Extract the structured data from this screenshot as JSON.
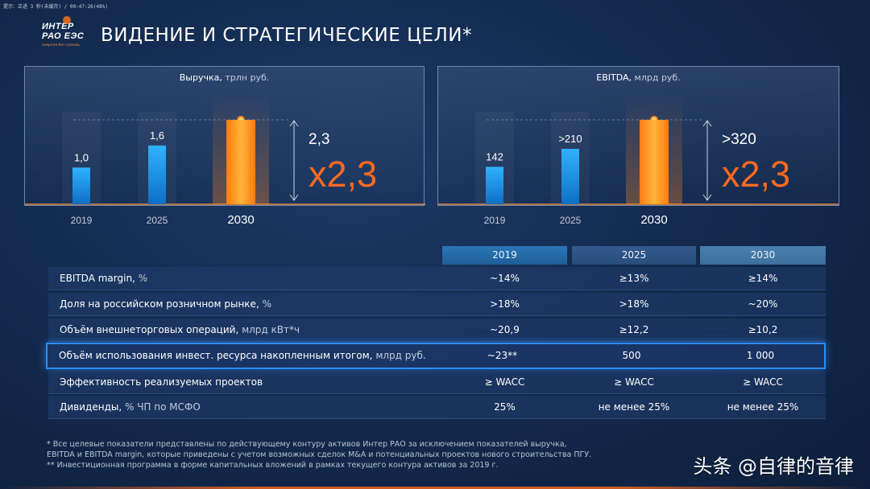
{
  "topbar": "提示：正进 3 秒(未缓存) / 00:47:26(48%)",
  "logo": {
    "line1": "ИНТЕР",
    "line2": "РАО ЕЭС",
    "tagline": "энергия без границ"
  },
  "title": "ВИДЕНИЕ И СТРАТЕГИЧЕСКИЕ ЦЕЛИ*",
  "colors": {
    "accent": "#ff6a22",
    "bar_blue": "#1e9be6",
    "bar_orange": "#ff8a1a",
    "highlight": "#2d8cf0"
  },
  "chart_data": [
    {
      "type": "bar",
      "title": "Выручка,",
      "unit": "трлн руб.",
      "categories": [
        "2019",
        "2025",
        "2030"
      ],
      "values": [
        1.0,
        1.6,
        2.3
      ],
      "value_labels": [
        "1,0",
        "1,6",
        "2,3"
      ],
      "multiplier": "x2,3",
      "highlight_category": "2030"
    },
    {
      "type": "bar",
      "title": "EBITDA,",
      "unit": "млрд руб.",
      "categories": [
        "2019",
        "2025",
        "2030"
      ],
      "values": [
        142,
        210,
        320
      ],
      "value_labels": [
        "142",
        ">210",
        ">320"
      ],
      "multiplier": "x2,3",
      "highlight_category": "2030"
    },
    {
      "type": "table",
      "columns": [
        "2019",
        "2025",
        "2030"
      ],
      "rows": [
        {
          "label": "EBITDA margin,",
          "unit": " %",
          "values": [
            "~14%",
            "≥13%",
            "≥14%"
          ]
        },
        {
          "label": "Доля на российском розничном рынке,",
          "unit": " %",
          "values": [
            ">18%",
            ">18%",
            "~20%"
          ]
        },
        {
          "label": "Объём внешнеторговых операций,",
          "unit": " млрд кВт*ч",
          "values": [
            "~20,9",
            "≥12,2",
            "≥10,2"
          ]
        },
        {
          "label": "Объём использования инвест. ресурса накопленным итогом,",
          "unit": " млрд руб.",
          "values": [
            "~23**",
            "500",
            "1 000"
          ],
          "highlighted": true
        },
        {
          "label": "Эффективность реализуемых проектов",
          "unit": "",
          "values": [
            "≥ WACC",
            "≥ WACC",
            "≥ WACC"
          ]
        },
        {
          "label": "Дивиденды,",
          "unit": " % ЧП по МСФО",
          "values": [
            "25%",
            "не менее 25%",
            "не менее 25%"
          ]
        }
      ]
    }
  ],
  "footnotes": [
    "* Все целевые показатели представлены по действующему контуру активов Интер РАО за исключением показателей выручка,",
    "EBITDA и EBITDA margin, которые приведены с учетом возможных сделок M&A и потенциальных проектов нового строительства ПГУ.",
    "** Инвестиционная программа в форме капитальных вложений в рамках текущего контура активов  за 2019 г."
  ],
  "watermark": "头条 @自律的音律"
}
